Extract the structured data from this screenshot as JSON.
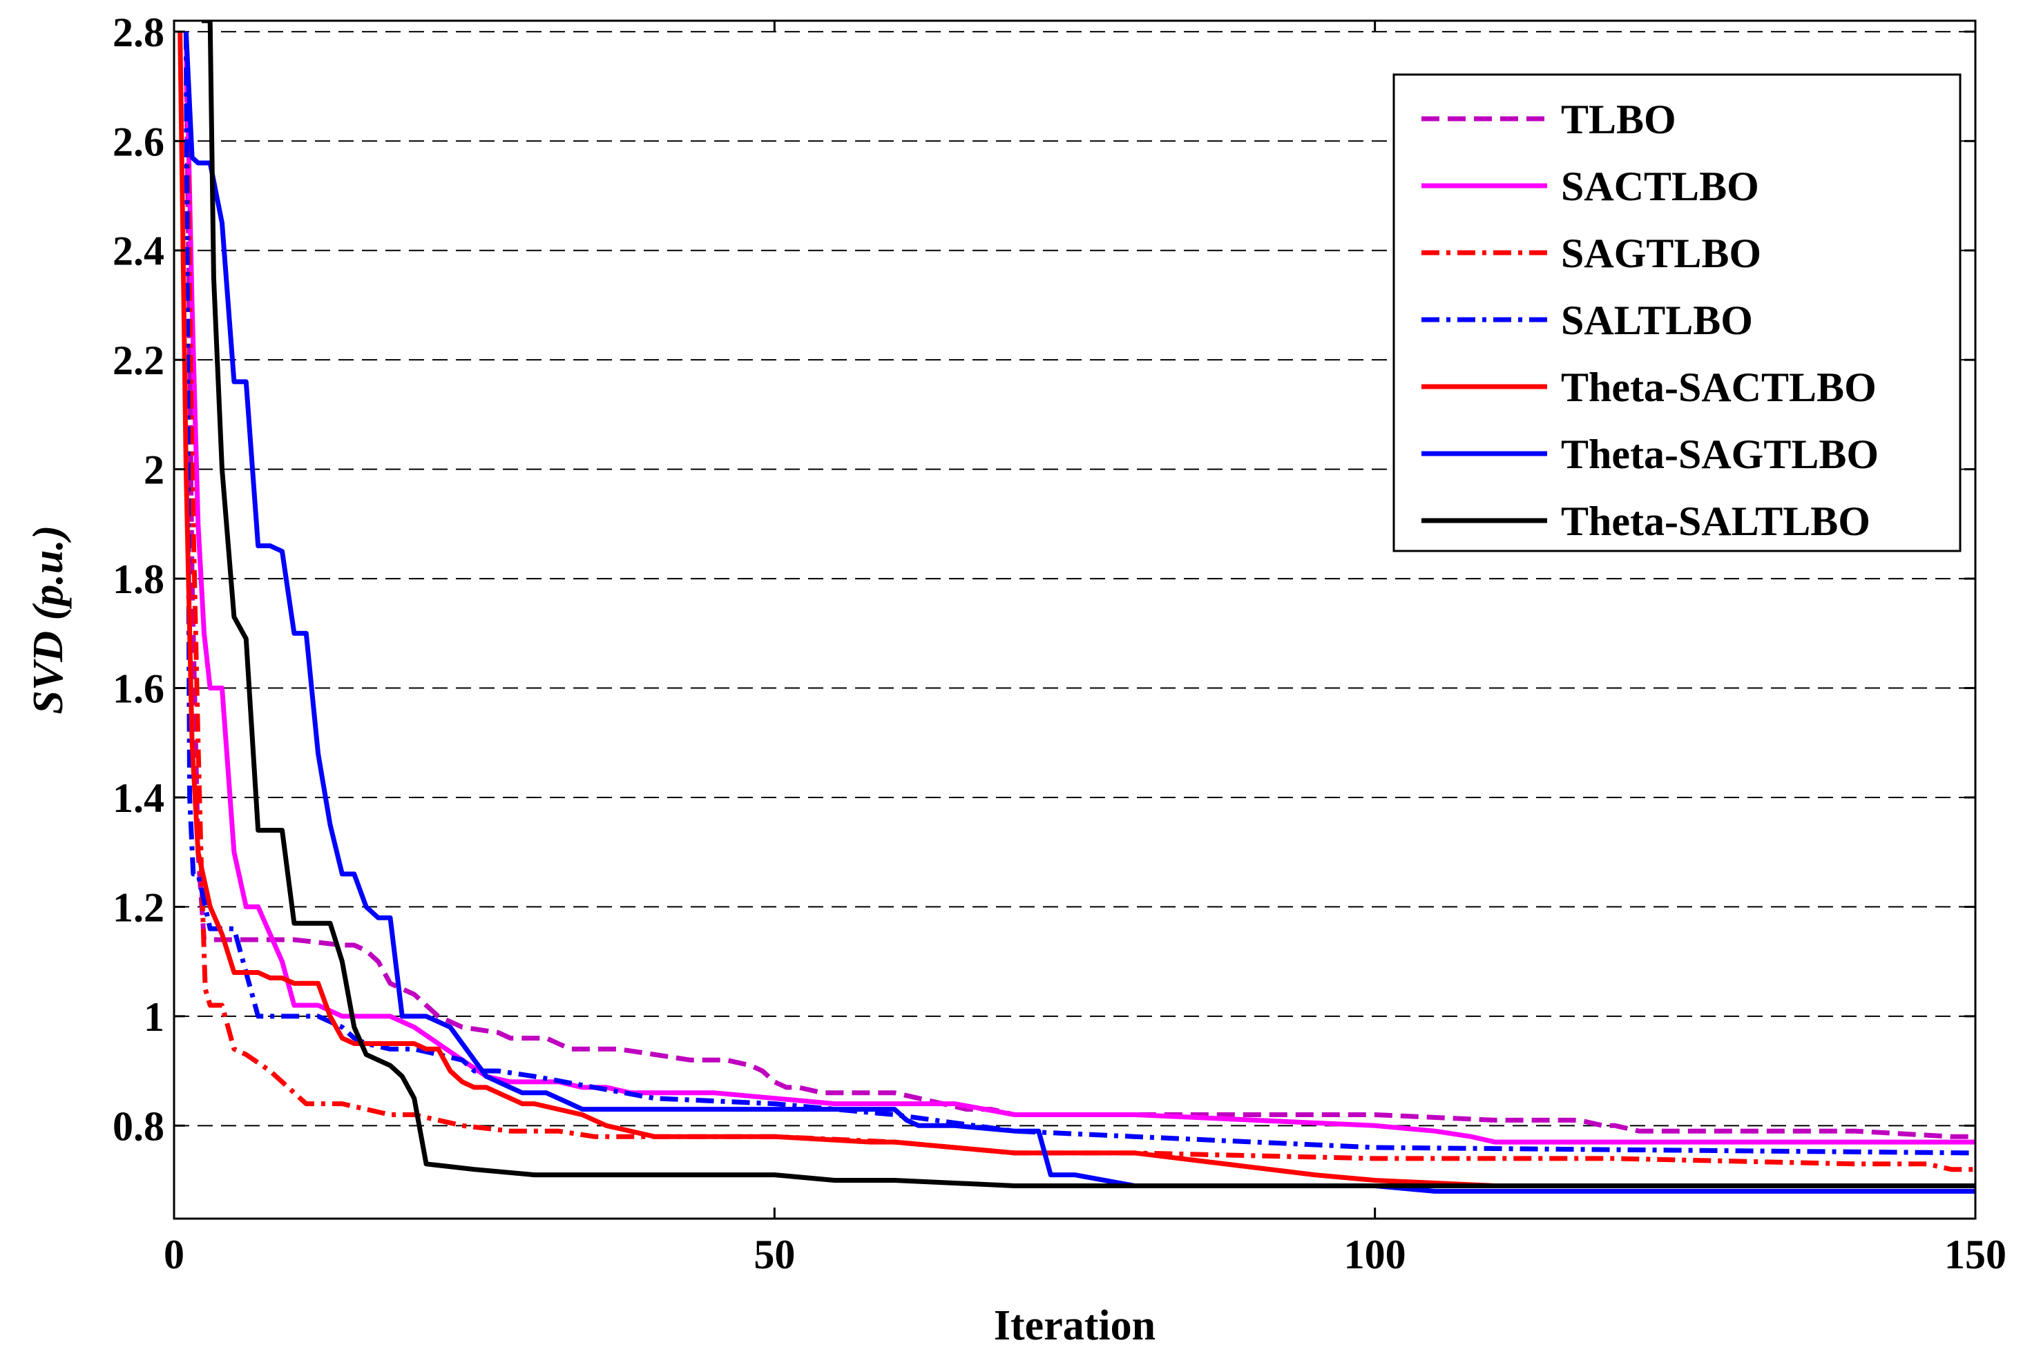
{
  "chart_data": {
    "type": "line",
    "title": "",
    "xlabel": "Iteration",
    "ylabel": "SVD (p.u.)",
    "xlim": [
      0,
      150
    ],
    "ylim": [
      0.63,
      2.82
    ],
    "xticks": [
      0,
      50,
      100,
      150
    ],
    "yticks": [
      0.8,
      1,
      1.2,
      1.4,
      1.6,
      1.8,
      2,
      2.2,
      2.4,
      2.6,
      2.8
    ],
    "xtick_labels": [
      "0",
      "50",
      "100",
      "150"
    ],
    "ytick_labels": [
      "0.8",
      "1",
      "1.2",
      "1.4",
      "1.6",
      "1.8",
      "2",
      "2.2",
      "2.4",
      "2.6",
      "2.8"
    ],
    "grid": "horizontal dashed",
    "legend_position": "top-right",
    "series": [
      {
        "name": "TLBO",
        "color": "#bf00bf",
        "dash": "dashed",
        "x": [
          1,
          1.5,
          2,
          2.5,
          5,
          10,
          14,
          15,
          16,
          17,
          18,
          20,
          22,
          24,
          27,
          28,
          31,
          32,
          33,
          34,
          35,
          37,
          40,
          43,
          45,
          46,
          48,
          49,
          50,
          51,
          52,
          54,
          55,
          60,
          64,
          66,
          68,
          70,
          100,
          110,
          117,
          119,
          120,
          122,
          125,
          140,
          148,
          150
        ],
        "y": [
          2.8,
          1.8,
          1.3,
          1.14,
          1.14,
          1.14,
          1.13,
          1.13,
          1.12,
          1.1,
          1.06,
          1.04,
          1.0,
          0.98,
          0.97,
          0.96,
          0.96,
          0.95,
          0.94,
          0.94,
          0.94,
          0.94,
          0.93,
          0.92,
          0.92,
          0.92,
          0.91,
          0.9,
          0.88,
          0.87,
          0.87,
          0.86,
          0.86,
          0.86,
          0.84,
          0.83,
          0.83,
          0.82,
          0.82,
          0.81,
          0.81,
          0.8,
          0.8,
          0.79,
          0.79,
          0.79,
          0.78,
          0.78
        ]
      },
      {
        "name": "SACTLBO",
        "color": "#ff00ff",
        "dash": "solid",
        "x": [
          1,
          1.5,
          2,
          2.5,
          3,
          4,
          5,
          6,
          7,
          8,
          9,
          10,
          12,
          14,
          16,
          18,
          20,
          22,
          24,
          26,
          28,
          30,
          32,
          34,
          36,
          38,
          40,
          45,
          50,
          55,
          60,
          65,
          70,
          80,
          90,
          100,
          105,
          108,
          110,
          140,
          150
        ],
        "y": [
          2.8,
          2.3,
          1.9,
          1.7,
          1.6,
          1.6,
          1.3,
          1.2,
          1.2,
          1.15,
          1.1,
          1.02,
          1.02,
          1.0,
          1.0,
          1.0,
          0.98,
          0.95,
          0.92,
          0.89,
          0.88,
          0.88,
          0.88,
          0.87,
          0.87,
          0.86,
          0.86,
          0.86,
          0.85,
          0.84,
          0.84,
          0.84,
          0.82,
          0.82,
          0.81,
          0.8,
          0.79,
          0.78,
          0.77,
          0.77,
          0.77
        ]
      },
      {
        "name": "SAGTLBO",
        "color": "#ff0000",
        "dash": "dashdot",
        "x": [
          1,
          1.5,
          2,
          2.3,
          2.6,
          3,
          4,
          5,
          6,
          8,
          10,
          11,
          12,
          14,
          16,
          18,
          20,
          24,
          28,
          32,
          35,
          40,
          50,
          60,
          65,
          70,
          80,
          100,
          120,
          140,
          146,
          148,
          150
        ],
        "y": [
          2.8,
          2.0,
          1.5,
          1.25,
          1.05,
          1.02,
          1.02,
          0.94,
          0.93,
          0.9,
          0.86,
          0.84,
          0.84,
          0.84,
          0.83,
          0.82,
          0.82,
          0.8,
          0.79,
          0.79,
          0.78,
          0.78,
          0.78,
          0.77,
          0.76,
          0.75,
          0.75,
          0.74,
          0.74,
          0.73,
          0.73,
          0.72,
          0.72
        ]
      },
      {
        "name": "SALTLBO",
        "color": "#0000ff",
        "dash": "dashdot",
        "x": [
          1,
          1.3,
          1.6,
          2,
          3,
          4,
          5,
          6,
          7,
          8,
          10,
          12,
          14,
          15,
          16,
          18,
          20,
          22,
          24,
          25,
          26,
          27,
          30,
          35,
          40,
          50,
          60,
          70,
          80,
          90,
          100,
          150
        ],
        "y": [
          2.8,
          1.4,
          1.26,
          1.26,
          1.16,
          1.16,
          1.16,
          1.08,
          1.0,
          1.0,
          1.0,
          1.0,
          0.98,
          0.96,
          0.95,
          0.94,
          0.94,
          0.93,
          0.92,
          0.9,
          0.9,
          0.9,
          0.89,
          0.87,
          0.85,
          0.84,
          0.82,
          0.79,
          0.78,
          0.77,
          0.76,
          0.75
        ]
      },
      {
        "name": "Theta-SACTLBO",
        "color": "#ff0000",
        "dash": "solid",
        "x": [
          0.5,
          1,
          1.5,
          2,
          2.5,
          3,
          4,
          5,
          7,
          8,
          9,
          10,
          12,
          13,
          14,
          15,
          17,
          20,
          21,
          22,
          23,
          24,
          25,
          26,
          28,
          29,
          30,
          32,
          34,
          35,
          36,
          40,
          50,
          58,
          60,
          65,
          70,
          80,
          95,
          100,
          110,
          120,
          130,
          140,
          150
        ],
        "y": [
          2.8,
          2.0,
          1.5,
          1.3,
          1.25,
          1.2,
          1.15,
          1.08,
          1.08,
          1.07,
          1.07,
          1.06,
          1.06,
          1.0,
          0.96,
          0.95,
          0.95,
          0.95,
          0.94,
          0.94,
          0.9,
          0.88,
          0.87,
          0.87,
          0.85,
          0.84,
          0.84,
          0.83,
          0.82,
          0.81,
          0.8,
          0.78,
          0.78,
          0.77,
          0.77,
          0.76,
          0.75,
          0.75,
          0.71,
          0.7,
          0.69,
          0.69,
          0.69,
          0.69,
          0.69
        ]
      },
      {
        "name": "Theta-SAGTLBO",
        "color": "#0000ff",
        "dash": "solid",
        "x": [
          1,
          1.5,
          2,
          3,
          4,
          5,
          5.5,
          6,
          7,
          8,
          9,
          10,
          11,
          12,
          13,
          14,
          15,
          16,
          17,
          18,
          19,
          20,
          21,
          22,
          23,
          24,
          25,
          26,
          27,
          28,
          29,
          30,
          31,
          32,
          33,
          34,
          36,
          40,
          45,
          50,
          55,
          60,
          61,
          62,
          65,
          70,
          72,
          73,
          75,
          80,
          85,
          90,
          95,
          100,
          105,
          150
        ],
        "y": [
          2.8,
          2.57,
          2.56,
          2.56,
          2.45,
          2.16,
          2.16,
          2.16,
          1.86,
          1.86,
          1.85,
          1.7,
          1.7,
          1.48,
          1.35,
          1.26,
          1.26,
          1.2,
          1.18,
          1.18,
          1.0,
          1.0,
          1.0,
          0.99,
          0.98,
          0.95,
          0.92,
          0.89,
          0.88,
          0.87,
          0.86,
          0.86,
          0.86,
          0.85,
          0.84,
          0.83,
          0.83,
          0.83,
          0.83,
          0.83,
          0.83,
          0.83,
          0.81,
          0.8,
          0.8,
          0.79,
          0.79,
          0.71,
          0.71,
          0.69,
          0.69,
          0.69,
          0.69,
          0.69,
          0.68,
          0.68
        ]
      },
      {
        "name": "Theta-SALTLBO",
        "color": "#000000",
        "dash": "solid",
        "x": [
          2.3,
          3,
          3.3,
          4,
          5,
          6,
          7,
          8,
          9,
          10,
          11,
          12,
          13,
          14,
          15,
          16,
          17,
          18,
          19,
          20,
          21,
          25,
          30,
          40,
          45,
          50,
          55,
          60,
          70,
          80,
          90,
          100,
          150
        ],
        "y": [
          2.82,
          2.82,
          2.35,
          2.0,
          1.73,
          1.69,
          1.34,
          1.34,
          1.34,
          1.17,
          1.17,
          1.17,
          1.17,
          1.1,
          0.98,
          0.93,
          0.92,
          0.91,
          0.89,
          0.85,
          0.73,
          0.72,
          0.71,
          0.71,
          0.71,
          0.71,
          0.7,
          0.7,
          0.69,
          0.69,
          0.69,
          0.69,
          0.69
        ]
      }
    ]
  }
}
